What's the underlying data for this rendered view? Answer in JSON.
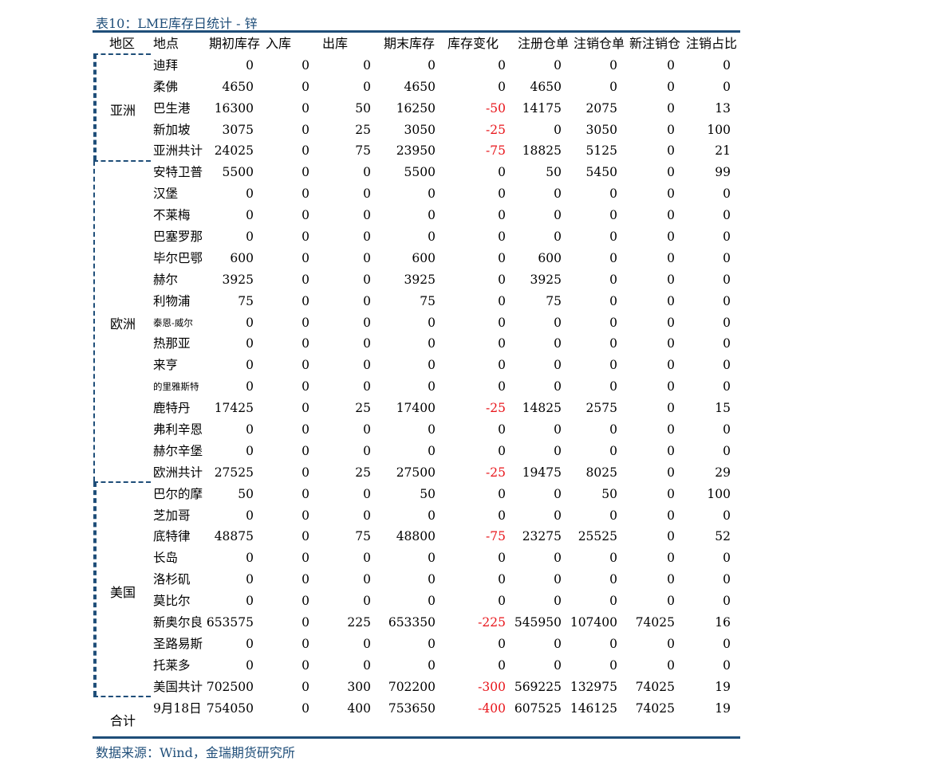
{
  "title": "表10：LME库存日统计 - 锌",
  "source": "数据来源：Wind，金瑞期货研究所",
  "colors": {
    "accent": "#1f4e79",
    "negative": "#e8141a"
  },
  "headers": [
    "地区",
    "地点",
    "期初库存",
    "入库",
    "出库",
    "期末库存",
    "库存变化",
    "注册仓单",
    "注销仓单",
    "新注销仓",
    "注销占比"
  ],
  "regions": {
    "asia": "亚洲",
    "europe": "欧洲",
    "us": "美国",
    "total": "合计"
  },
  "rows": [
    {
      "loc": "迪拜",
      "open": "0",
      "in": "0",
      "out": "0",
      "close": "0",
      "chg": "0",
      "reg": "0",
      "can": "0",
      "new": "0",
      "pct": "0"
    },
    {
      "loc": "柔佛",
      "open": "4650",
      "in": "0",
      "out": "0",
      "close": "4650",
      "chg": "0",
      "reg": "4650",
      "can": "0",
      "new": "0",
      "pct": "0"
    },
    {
      "loc": "巴生港",
      "open": "16300",
      "in": "0",
      "out": "50",
      "close": "16250",
      "chg": "-50",
      "reg": "14175",
      "can": "2075",
      "new": "0",
      "pct": "13"
    },
    {
      "loc": "新加坡",
      "open": "3075",
      "in": "0",
      "out": "25",
      "close": "3050",
      "chg": "-25",
      "reg": "0",
      "can": "3050",
      "new": "0",
      "pct": "100"
    },
    {
      "loc": "亚洲共计",
      "open": "24025",
      "in": "0",
      "out": "75",
      "close": "23950",
      "chg": "-75",
      "reg": "18825",
      "can": "5125",
      "new": "0",
      "pct": "21"
    },
    {
      "loc": "安特卫普",
      "open": "5500",
      "in": "0",
      "out": "0",
      "close": "5500",
      "chg": "0",
      "reg": "50",
      "can": "5450",
      "new": "0",
      "pct": "99"
    },
    {
      "loc": "汉堡",
      "open": "0",
      "in": "0",
      "out": "0",
      "close": "0",
      "chg": "0",
      "reg": "0",
      "can": "0",
      "new": "0",
      "pct": "0"
    },
    {
      "loc": "不莱梅",
      "open": "0",
      "in": "0",
      "out": "0",
      "close": "0",
      "chg": "0",
      "reg": "0",
      "can": "0",
      "new": "0",
      "pct": "0"
    },
    {
      "loc": "巴塞罗那",
      "open": "0",
      "in": "0",
      "out": "0",
      "close": "0",
      "chg": "0",
      "reg": "0",
      "can": "0",
      "new": "0",
      "pct": "0"
    },
    {
      "loc": "毕尔巴鄂",
      "open": "600",
      "in": "0",
      "out": "0",
      "close": "600",
      "chg": "0",
      "reg": "600",
      "can": "0",
      "new": "0",
      "pct": "0"
    },
    {
      "loc": "赫尔",
      "open": "3925",
      "in": "0",
      "out": "0",
      "close": "3925",
      "chg": "0",
      "reg": "3925",
      "can": "0",
      "new": "0",
      "pct": "0"
    },
    {
      "loc": "利物浦",
      "open": "75",
      "in": "0",
      "out": "0",
      "close": "75",
      "chg": "0",
      "reg": "75",
      "can": "0",
      "new": "0",
      "pct": "0"
    },
    {
      "loc": "泰恩-威尔",
      "small": true,
      "open": "0",
      "in": "0",
      "out": "0",
      "close": "0",
      "chg": "0",
      "reg": "0",
      "can": "0",
      "new": "0",
      "pct": "0"
    },
    {
      "loc": "热那亚",
      "open": "0",
      "in": "0",
      "out": "0",
      "close": "0",
      "chg": "0",
      "reg": "0",
      "can": "0",
      "new": "0",
      "pct": "0"
    },
    {
      "loc": "来亨",
      "open": "0",
      "in": "0",
      "out": "0",
      "close": "0",
      "chg": "0",
      "reg": "0",
      "can": "0",
      "new": "0",
      "pct": "0"
    },
    {
      "loc": "的里雅斯特",
      "small": true,
      "open": "0",
      "in": "0",
      "out": "0",
      "close": "0",
      "chg": "0",
      "reg": "0",
      "can": "0",
      "new": "0",
      "pct": "0"
    },
    {
      "loc": "鹿特丹",
      "open": "17425",
      "in": "0",
      "out": "25",
      "close": "17400",
      "chg": "-25",
      "reg": "14825",
      "can": "2575",
      "new": "0",
      "pct": "15"
    },
    {
      "loc": "弗利辛恩",
      "open": "0",
      "in": "0",
      "out": "0",
      "close": "0",
      "chg": "0",
      "reg": "0",
      "can": "0",
      "new": "0",
      "pct": "0"
    },
    {
      "loc": "赫尔辛堡",
      "open": "0",
      "in": "0",
      "out": "0",
      "close": "0",
      "chg": "0",
      "reg": "0",
      "can": "0",
      "new": "0",
      "pct": "0"
    },
    {
      "loc": "欧洲共计",
      "open": "27525",
      "in": "0",
      "out": "25",
      "close": "27500",
      "chg": "-25",
      "reg": "19475",
      "can": "8025",
      "new": "0",
      "pct": "29"
    },
    {
      "loc": "巴尔的摩",
      "open": "50",
      "in": "0",
      "out": "0",
      "close": "50",
      "chg": "0",
      "reg": "0",
      "can": "50",
      "new": "0",
      "pct": "100"
    },
    {
      "loc": "芝加哥",
      "open": "0",
      "in": "0",
      "out": "0",
      "close": "0",
      "chg": "0",
      "reg": "0",
      "can": "0",
      "new": "0",
      "pct": "0"
    },
    {
      "loc": "底特律",
      "open": "48875",
      "in": "0",
      "out": "75",
      "close": "48800",
      "chg": "-75",
      "reg": "23275",
      "can": "25525",
      "new": "0",
      "pct": "52"
    },
    {
      "loc": "长岛",
      "open": "0",
      "in": "0",
      "out": "0",
      "close": "0",
      "chg": "0",
      "reg": "0",
      "can": "0",
      "new": "0",
      "pct": "0"
    },
    {
      "loc": "洛杉矶",
      "open": "0",
      "in": "0",
      "out": "0",
      "close": "0",
      "chg": "0",
      "reg": "0",
      "can": "0",
      "new": "0",
      "pct": "0"
    },
    {
      "loc": "莫比尔",
      "open": "0",
      "in": "0",
      "out": "0",
      "close": "0",
      "chg": "0",
      "reg": "0",
      "can": "0",
      "new": "0",
      "pct": "0"
    },
    {
      "loc": "新奥尔良",
      "open": "653575",
      "in": "0",
      "out": "225",
      "close": "653350",
      "chg": "-225",
      "reg": "545950",
      "can": "107400",
      "new": "74025",
      "pct": "16"
    },
    {
      "loc": "圣路易斯",
      "open": "0",
      "in": "0",
      "out": "0",
      "close": "0",
      "chg": "0",
      "reg": "0",
      "can": "0",
      "new": "0",
      "pct": "0"
    },
    {
      "loc": "托莱多",
      "open": "0",
      "in": "0",
      "out": "0",
      "close": "0",
      "chg": "0",
      "reg": "0",
      "can": "0",
      "new": "0",
      "pct": "0"
    },
    {
      "loc": "美国共计",
      "open": "702500",
      "in": "0",
      "out": "300",
      "close": "702200",
      "chg": "-300",
      "reg": "569225",
      "can": "132975",
      "new": "74025",
      "pct": "19"
    },
    {
      "loc": "9月18日",
      "open": "754050",
      "in": "0",
      "out": "400",
      "close": "753650",
      "chg": "-400",
      "reg": "607525",
      "can": "146125",
      "new": "74025",
      "pct": "19"
    }
  ]
}
